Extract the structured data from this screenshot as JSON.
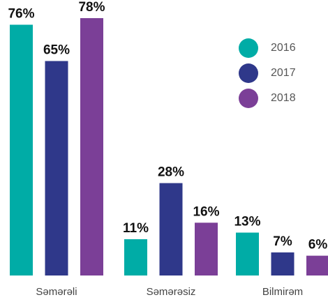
{
  "chart_data": {
    "type": "bar",
    "categories": [
      "Səmərəli",
      "Səmərəsiz",
      "Bilmirəm"
    ],
    "series": [
      {
        "name": "2016",
        "color": "#00aca6",
        "values": [
          76,
          11,
          13
        ],
        "value_labels": [
          "76%",
          "11%",
          "13%"
        ]
      },
      {
        "name": "2017",
        "color": "#2f388a",
        "values": [
          65,
          28,
          7
        ],
        "value_labels": [
          "65%",
          "28%",
          "7%"
        ]
      },
      {
        "name": "2018",
        "color": "#7b3f97",
        "values": [
          78,
          16,
          6
        ],
        "value_labels": [
          "78%",
          "16%",
          "6%"
        ]
      }
    ],
    "legend": "upper right"
  }
}
